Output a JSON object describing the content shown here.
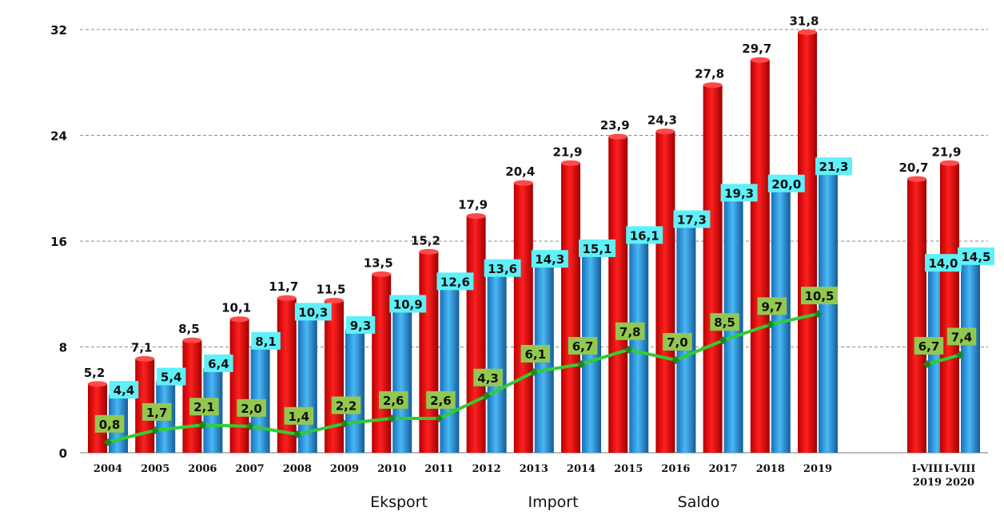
{
  "chart_data": {
    "type": "bar",
    "categories": [
      "2004",
      "2005",
      "2006",
      "2007",
      "2008",
      "2009",
      "2010",
      "2011",
      "2012",
      "2013",
      "2014",
      "2015",
      "2016",
      "2017",
      "2018",
      "2019",
      "I-VIII\n2019",
      "I-VIII\n2020"
    ],
    "series": [
      {
        "name": "Eksport",
        "type": "bar",
        "color": "#ee1111",
        "values": [
          5.2,
          7.1,
          8.5,
          10.1,
          11.7,
          11.5,
          13.5,
          15.2,
          17.9,
          20.4,
          21.9,
          23.9,
          24.3,
          27.8,
          29.7,
          31.8,
          20.7,
          21.9
        ],
        "labels": [
          "5,2",
          "7,1",
          "8,5",
          "10,1",
          "11,7",
          "11,5",
          "13,5",
          "15,2",
          "17,9",
          "20,4",
          "21,9",
          "23,9",
          "24,3",
          "27,8",
          "29,7",
          "31,8",
          "20,7",
          "21,9"
        ]
      },
      {
        "name": "Import",
        "type": "bar",
        "color": "#2b9be0",
        "values": [
          4.4,
          5.4,
          6.4,
          8.1,
          10.3,
          9.3,
          10.9,
          12.6,
          13.6,
          14.3,
          15.1,
          16.1,
          17.3,
          19.3,
          20.0,
          21.3,
          14.0,
          14.5
        ],
        "labels": [
          "4,4",
          "5,4",
          "6,4",
          "8,1",
          "10,3",
          "9,3",
          "10,9",
          "12,6",
          "13,6",
          "14,3",
          "15,1",
          "16,1",
          "17,3",
          "19,3",
          "20,0",
          "21,3",
          "14,0",
          "14,5"
        ]
      },
      {
        "name": "Saldo",
        "type": "line",
        "color": "#33cc33",
        "values": [
          0.8,
          1.7,
          2.1,
          2.0,
          1.4,
          2.2,
          2.6,
          2.6,
          4.3,
          6.1,
          6.7,
          7.8,
          7.0,
          8.5,
          9.7,
          10.5,
          6.7,
          7.4
        ],
        "labels": [
          "0,8",
          "1,7",
          "2,1",
          "2,0",
          "1,4",
          "2,2",
          "2,6",
          "2,6",
          "4,3",
          "6,1",
          "6,7",
          "7,8",
          "7,0",
          "8,5",
          "9,7",
          "10,5",
          "6,7",
          "7,4"
        ]
      }
    ],
    "yticks": [
      "0",
      "8",
      "16",
      "24",
      "32"
    ],
    "ylim": [
      0,
      32
    ],
    "grid": true,
    "legend": [
      "Eksport",
      "Import",
      "Saldo"
    ],
    "legend_position": "bottom",
    "colors": {
      "export": "#ee1111",
      "import": "#2b9be0",
      "saldo": "#33cc33",
      "saldo_label_bg": "#92c84f",
      "import_label_bg": "#5ff0f8"
    }
  }
}
